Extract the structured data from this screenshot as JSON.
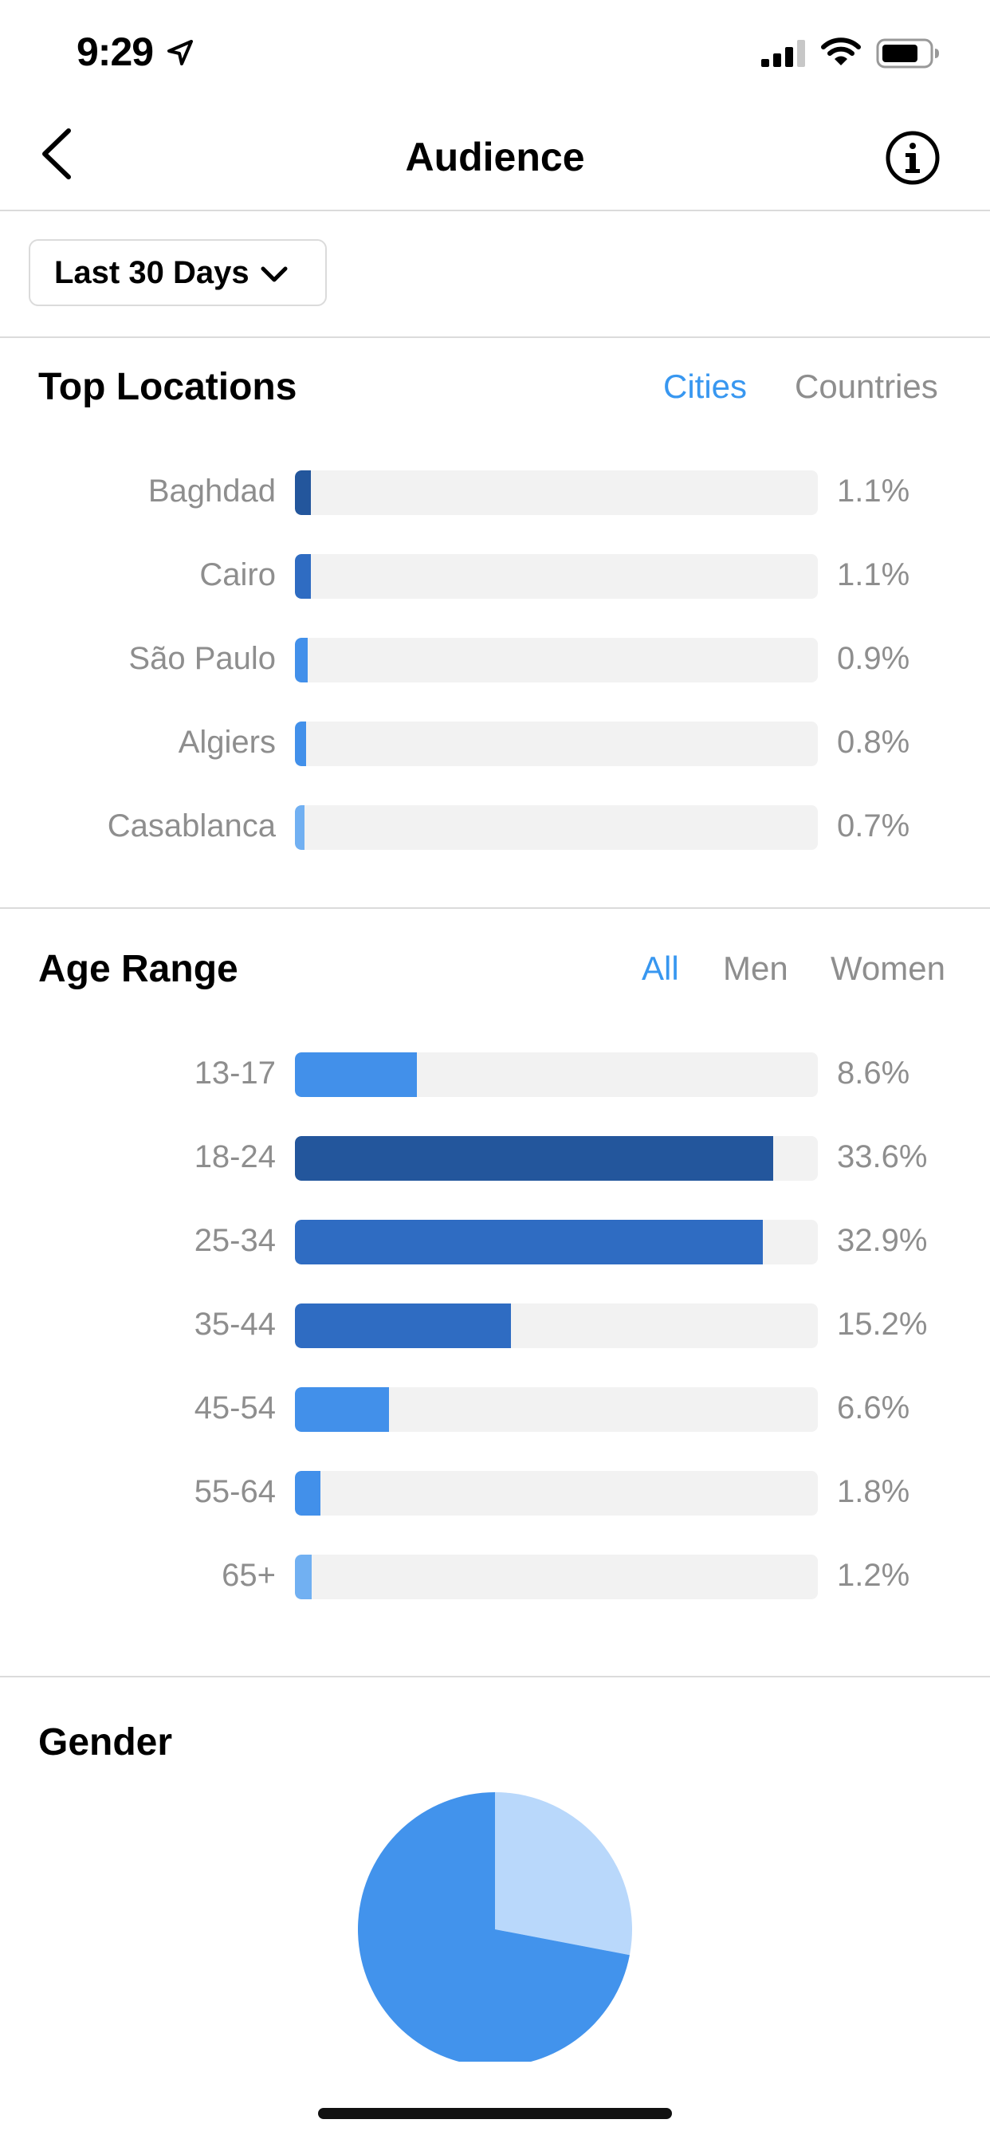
{
  "status_bar": {
    "time": "9:29"
  },
  "header": {
    "title": "Audience"
  },
  "filter": {
    "label": "Last 30 Days"
  },
  "top_locations": {
    "title": "Top Locations",
    "tabs": [
      "Cities",
      "Countries"
    ],
    "active_tab": "Cities",
    "rows": [
      {
        "label": "Baghdad",
        "value": "1.1%",
        "fraction": 0.011,
        "color": "#23569c"
      },
      {
        "label": "Cairo",
        "value": "1.1%",
        "fraction": 0.011,
        "color": "#2f6cc2"
      },
      {
        "label": "São Paulo",
        "value": "0.9%",
        "fraction": 0.009,
        "color": "#4290ea"
      },
      {
        "label": "Algiers",
        "value": "0.8%",
        "fraction": 0.008,
        "color": "#4290ea"
      },
      {
        "label": "Casablanca",
        "value": "0.7%",
        "fraction": 0.007,
        "color": "#71b0f2"
      }
    ]
  },
  "age_range": {
    "title": "Age Range",
    "tabs": [
      "All",
      "Men",
      "Women"
    ],
    "active_tab": "All",
    "rows": [
      {
        "label": "13-17",
        "value": "8.6%",
        "fraction": 0.086,
        "color": "#4290ea"
      },
      {
        "label": "18-24",
        "value": "33.6%",
        "fraction": 0.336,
        "color": "#23569c"
      },
      {
        "label": "25-34",
        "value": "32.9%",
        "fraction": 0.329,
        "color": "#2f6cc2"
      },
      {
        "label": "35-44",
        "value": "15.2%",
        "fraction": 0.152,
        "color": "#2f6cc2"
      },
      {
        "label": "45-54",
        "value": "6.6%",
        "fraction": 0.066,
        "color": "#4290ea"
      },
      {
        "label": "55-64",
        "value": "1.8%",
        "fraction": 0.018,
        "color": "#4290ea"
      },
      {
        "label": "65+",
        "value": "1.2%",
        "fraction": 0.012,
        "color": "#71b0f2"
      }
    ]
  },
  "gender": {
    "title": "Gender",
    "chart_data": {
      "type": "pie",
      "slices": [
        {
          "value": 0.28,
          "color": "#b9d8fb"
        },
        {
          "value": 0.72,
          "color": "#4293ec"
        }
      ]
    }
  },
  "colors": {
    "accent": "#3897f0",
    "muted_text": "#8e8e8e",
    "track": "#f2f2f2",
    "divider": "#dbdbdb"
  },
  "icons": [
    "location-arrow-icon",
    "signal-icon",
    "wifi-icon",
    "battery-icon",
    "back-chevron-icon",
    "info-icon",
    "chevron-down-icon"
  ]
}
